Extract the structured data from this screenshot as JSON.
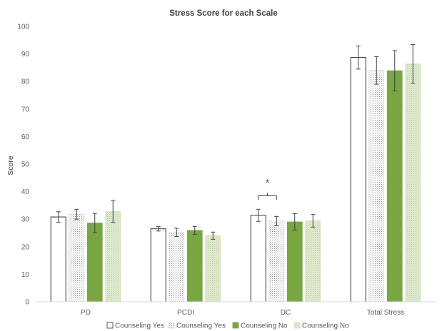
{
  "chart_data": {
    "type": "bar",
    "title": "Stress Score for each Scale",
    "ylabel": "Score",
    "xlabel": "",
    "ylim": [
      0,
      100
    ],
    "yticks": [
      0,
      10,
      20,
      30,
      40,
      50,
      60,
      70,
      80,
      90,
      100
    ],
    "grid": false,
    "legend_position": "bottom",
    "categories": [
      "PD",
      "PCDI",
      "DC",
      "Total Stress"
    ],
    "series": [
      {
        "name": "Counseling Yes",
        "values": [
          30.8,
          26.5,
          31.4,
          88.7
        ],
        "errors": [
          1.9,
          0.8,
          2.2,
          4.2
        ],
        "style": "white",
        "color": "#ffffff",
        "stroke": "#333333"
      },
      {
        "name": "Counseling Yes",
        "values": [
          31.8,
          25.2,
          29.3,
          84.0
        ],
        "errors": [
          1.8,
          1.5,
          1.7,
          5.0
        ],
        "style": "dotted",
        "color": "#ffffff",
        "stroke": "#bfbfbf"
      },
      {
        "name": "Counseling No",
        "values": [
          28.6,
          25.9,
          29.0,
          83.9
        ],
        "errors": [
          3.5,
          1.4,
          3.0,
          7.3
        ],
        "style": "solid",
        "color": "#7aa543",
        "stroke": "#7aa543"
      },
      {
        "name": "Counseling No",
        "values": [
          32.8,
          24.0,
          29.4,
          86.4
        ],
        "errors": [
          4.0,
          1.3,
          2.3,
          7.0
        ],
        "style": "light-dotted",
        "color": "#d5e1bd",
        "stroke": "#d5e1bd"
      }
    ],
    "annotations": [
      {
        "text": "*",
        "category": "DC",
        "between_series": [
          0,
          1
        ],
        "y": 38.5
      }
    ]
  }
}
